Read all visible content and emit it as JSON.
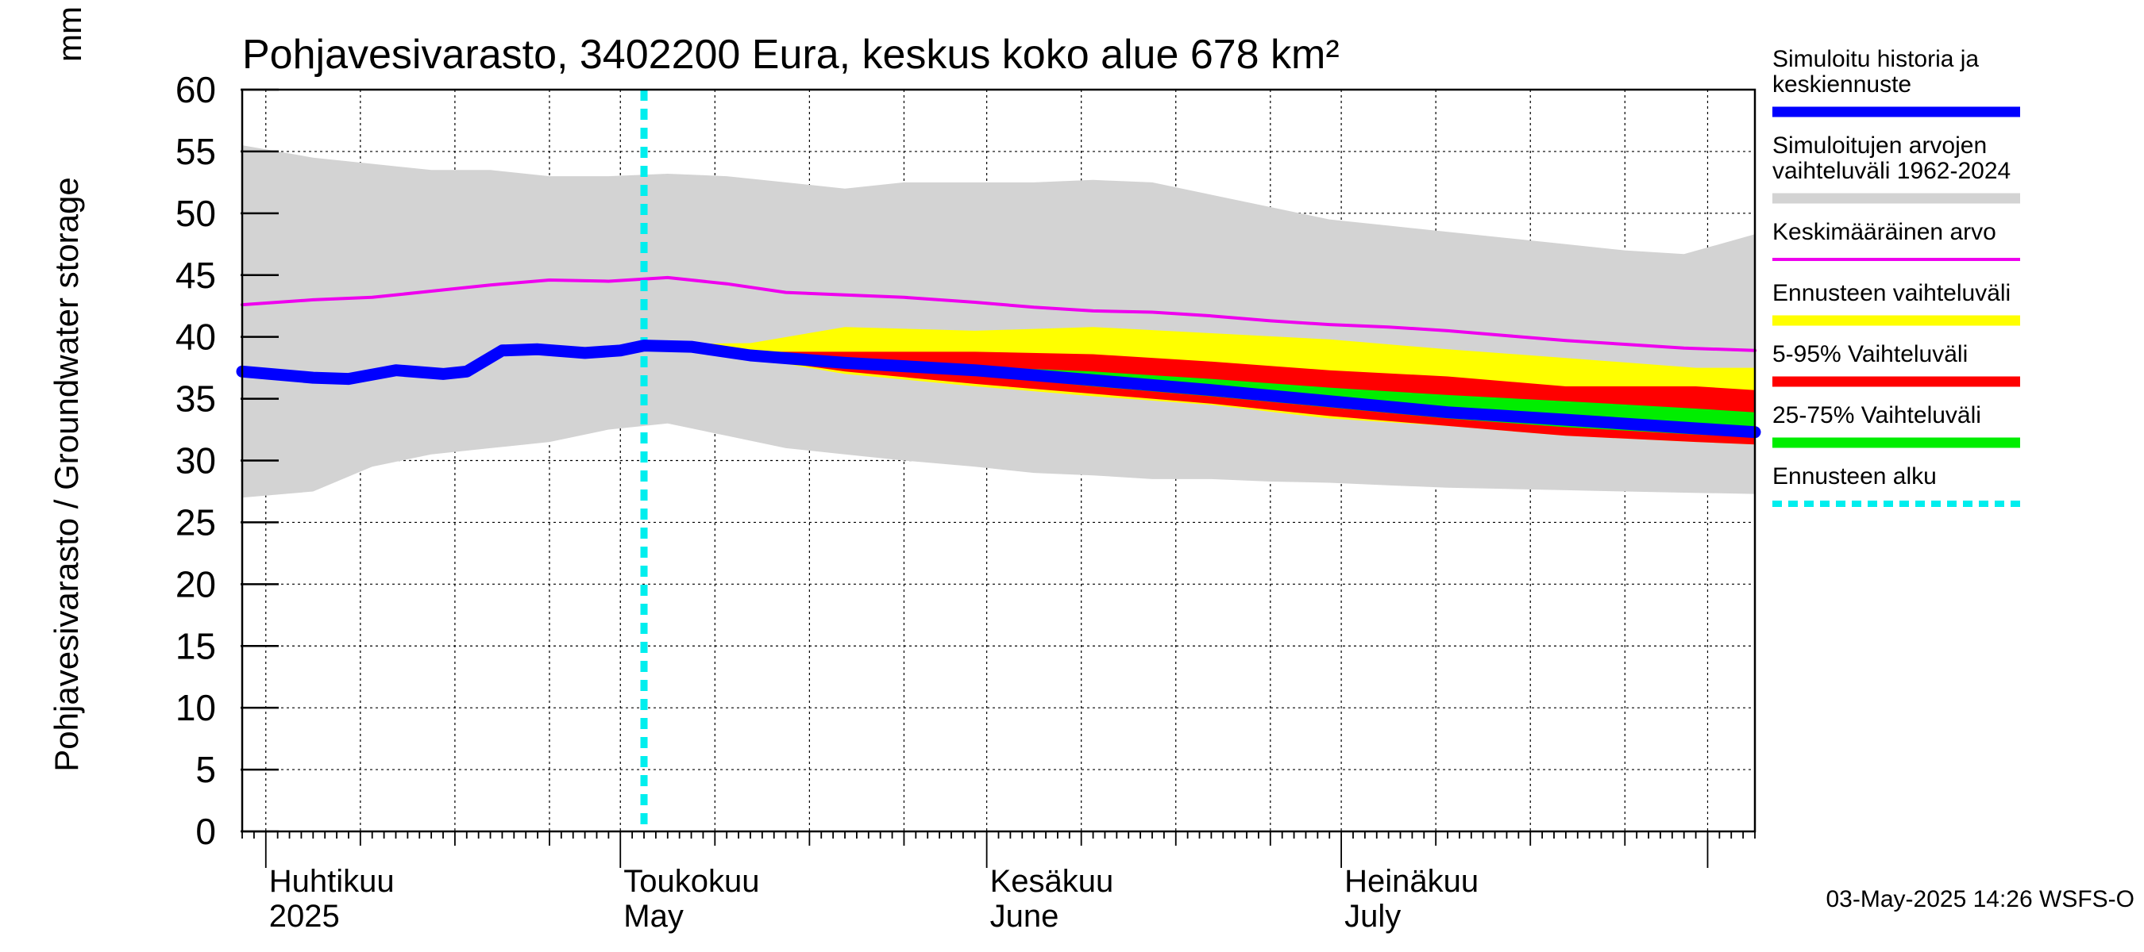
{
  "chart_data": {
    "type": "area",
    "title": "Pohjavesivarasto, 3402200 Eura, keskus koko alue 678 km²",
    "ylabel": "Pohjavesivarasto / Groundwater storage",
    "yunit": "mm",
    "ylim": [
      0,
      60
    ],
    "yticks": [
      0,
      5,
      10,
      15,
      20,
      25,
      30,
      35,
      40,
      45,
      50,
      55,
      60
    ],
    "xlim": [
      "2025-03-30",
      "2025-08-05"
    ],
    "grid": true,
    "legend_position": "right",
    "months": [
      {
        "label1": "Huhtikuu",
        "label2": "2025",
        "start": "2025-04-01"
      },
      {
        "label1": "Toukokuu",
        "label2": "May",
        "start": "2025-05-01"
      },
      {
        "label1": "Kesäkuu",
        "label2": "June",
        "start": "2025-06-01"
      },
      {
        "label1": "Heinäkuu",
        "label2": "July",
        "start": "2025-07-01"
      }
    ],
    "forecast_start": "2025-05-03",
    "colors": {
      "history": "#0000ff",
      "range_1962_2024": "#d3d3d3",
      "mean": "#ee00ee",
      "forecast_range": "#ffff00",
      "p5_95": "#ff0000",
      "p25_75": "#00ee00",
      "forecast_start": "#00eeee"
    },
    "series": [
      {
        "key": "range_1962_2024",
        "name": "Simuloitujen arvojen vaihteluväli 1962-2024",
        "x": [
          "2025-03-30",
          "2025-04-05",
          "2025-04-10",
          "2025-04-15",
          "2025-04-20",
          "2025-04-25",
          "2025-04-30",
          "2025-05-05",
          "2025-05-10",
          "2025-05-15",
          "2025-05-20",
          "2025-05-25",
          "2025-05-31",
          "2025-06-05",
          "2025-06-10",
          "2025-06-15",
          "2025-06-20",
          "2025-06-25",
          "2025-06-30",
          "2025-07-05",
          "2025-07-10",
          "2025-07-15",
          "2025-07-20",
          "2025-07-25",
          "2025-07-30",
          "2025-08-05"
        ],
        "lower": [
          27.0,
          27.5,
          29.5,
          30.5,
          31.0,
          31.5,
          32.5,
          33.0,
          32.0,
          31.0,
          30.5,
          30.0,
          29.5,
          29.0,
          28.8,
          28.5,
          28.5,
          28.3,
          28.2,
          28.0,
          27.8,
          27.7,
          27.6,
          27.5,
          27.4,
          27.3
        ],
        "upper": [
          55.5,
          54.5,
          54.0,
          53.5,
          53.5,
          53.0,
          53.0,
          53.2,
          53.0,
          52.5,
          52.0,
          52.5,
          52.5,
          52.5,
          52.7,
          52.5,
          51.5,
          50.5,
          49.5,
          49.0,
          48.5,
          48.0,
          47.5,
          47.0,
          46.7,
          48.3
        ]
      },
      {
        "key": "mean",
        "name": "Keskimääräinen arvo",
        "x": [
          "2025-03-30",
          "2025-04-05",
          "2025-04-10",
          "2025-04-15",
          "2025-04-20",
          "2025-04-25",
          "2025-04-30",
          "2025-05-05",
          "2025-05-10",
          "2025-05-15",
          "2025-05-20",
          "2025-05-25",
          "2025-05-31",
          "2025-06-05",
          "2025-06-10",
          "2025-06-15",
          "2025-06-20",
          "2025-06-25",
          "2025-06-30",
          "2025-07-05",
          "2025-07-10",
          "2025-07-15",
          "2025-07-20",
          "2025-07-25",
          "2025-07-30",
          "2025-08-05"
        ],
        "values": [
          42.6,
          43.0,
          43.2,
          43.7,
          44.2,
          44.6,
          44.5,
          44.8,
          44.3,
          43.6,
          43.4,
          43.2,
          42.8,
          42.4,
          42.1,
          42.0,
          41.7,
          41.3,
          41.0,
          40.8,
          40.5,
          40.1,
          39.7,
          39.4,
          39.1,
          38.9
        ]
      },
      {
        "key": "history",
        "name": "Simuloitu historia ja keskiennuste",
        "x": [
          "2025-03-30",
          "2025-04-05",
          "2025-04-08",
          "2025-04-12",
          "2025-04-16",
          "2025-04-18",
          "2025-04-21",
          "2025-04-24",
          "2025-04-28",
          "2025-05-01",
          "2025-05-03",
          "2025-05-07",
          "2025-05-12",
          "2025-05-20",
          "2025-05-31",
          "2025-06-10",
          "2025-06-20",
          "2025-06-30",
          "2025-07-10",
          "2025-07-20",
          "2025-07-31",
          "2025-08-05"
        ],
        "values": [
          37.2,
          36.7,
          36.6,
          37.3,
          37.0,
          37.2,
          38.9,
          39.0,
          38.7,
          38.9,
          39.3,
          39.2,
          38.5,
          37.9,
          37.3,
          36.5,
          35.7,
          34.8,
          33.9,
          33.3,
          32.6,
          32.3
        ]
      },
      {
        "key": "forecast_range",
        "name": "Ennusteen vaihteluväli",
        "x": [
          "2025-05-03",
          "2025-05-12",
          "2025-05-20",
          "2025-05-31",
          "2025-06-10",
          "2025-06-20",
          "2025-06-30",
          "2025-07-10",
          "2025-07-20",
          "2025-07-31",
          "2025-08-05"
        ],
        "lower": [
          39.2,
          38.3,
          37.0,
          36.0,
          35.2,
          34.5,
          33.4,
          32.8,
          32.0,
          31.5,
          31.3
        ],
        "upper": [
          39.4,
          39.5,
          40.8,
          40.5,
          40.8,
          40.3,
          39.8,
          39.0,
          38.3,
          37.5,
          37.5
        ]
      },
      {
        "key": "p5_95",
        "name": "5-95% Vaihteluväli",
        "x": [
          "2025-05-03",
          "2025-05-12",
          "2025-05-20",
          "2025-05-31",
          "2025-06-10",
          "2025-06-20",
          "2025-06-30",
          "2025-07-10",
          "2025-07-20",
          "2025-07-31",
          "2025-08-05"
        ],
        "lower": [
          39.2,
          38.3,
          37.2,
          36.2,
          35.4,
          34.6,
          33.6,
          32.8,
          32.0,
          31.5,
          31.3
        ],
        "upper": [
          39.3,
          38.8,
          38.8,
          38.8,
          38.6,
          38.0,
          37.3,
          36.8,
          36.0,
          36.0,
          35.7
        ]
      },
      {
        "key": "p25_75",
        "name": "25-75% Vaihteluväli",
        "x": [
          "2025-05-03",
          "2025-05-12",
          "2025-05-20",
          "2025-05-31",
          "2025-06-10",
          "2025-06-20",
          "2025-06-30",
          "2025-07-10",
          "2025-07-20",
          "2025-07-31",
          "2025-08-05"
        ],
        "lower": [
          39.2,
          38.3,
          37.6,
          36.9,
          36.0,
          35.2,
          34.3,
          33.4,
          32.7,
          32.1,
          31.9
        ],
        "upper": [
          39.3,
          38.6,
          38.0,
          37.6,
          37.2,
          36.6,
          35.9,
          35.3,
          34.8,
          34.2,
          33.9
        ]
      }
    ]
  },
  "legend": [
    {
      "key": "history",
      "text": "Simuloitu historia ja keskiennuste",
      "lines": [
        "Simuloitu historia ja",
        "keskiennuste"
      ],
      "color": "#0000ff",
      "style": "thick"
    },
    {
      "key": "range_1962_2024",
      "text": "Simuloitujen arvojen vaihteluväli 1962-2024",
      "lines": [
        "Simuloitujen arvojen",
        "vaihteluväli 1962-2024"
      ],
      "color": "#d3d3d3",
      "style": "band"
    },
    {
      "key": "mean",
      "text": "Keskimääräinen arvo",
      "lines": [
        "Keskimääräinen arvo"
      ],
      "color": "#ee00ee",
      "style": "thin"
    },
    {
      "key": "forecast_range",
      "text": "Ennusteen vaihteluväli",
      "lines": [
        "Ennusteen vaihteluväli"
      ],
      "color": "#ffff00",
      "style": "band"
    },
    {
      "key": "p5_95",
      "text": "5-95% Vaihteluväli",
      "lines": [
        "5-95% Vaihteluväli"
      ],
      "color": "#ff0000",
      "style": "band"
    },
    {
      "key": "p25_75",
      "text": "25-75% Vaihteluväli",
      "lines": [
        "25-75% Vaihteluväli"
      ],
      "color": "#00ee00",
      "style": "band"
    },
    {
      "key": "forecast_start",
      "text": "Ennusteen alku",
      "lines": [
        "Ennusteen alku"
      ],
      "color": "#00eeee",
      "style": "dotted"
    }
  ],
  "footer": "03-May-2025 14:26 WSFS-O"
}
